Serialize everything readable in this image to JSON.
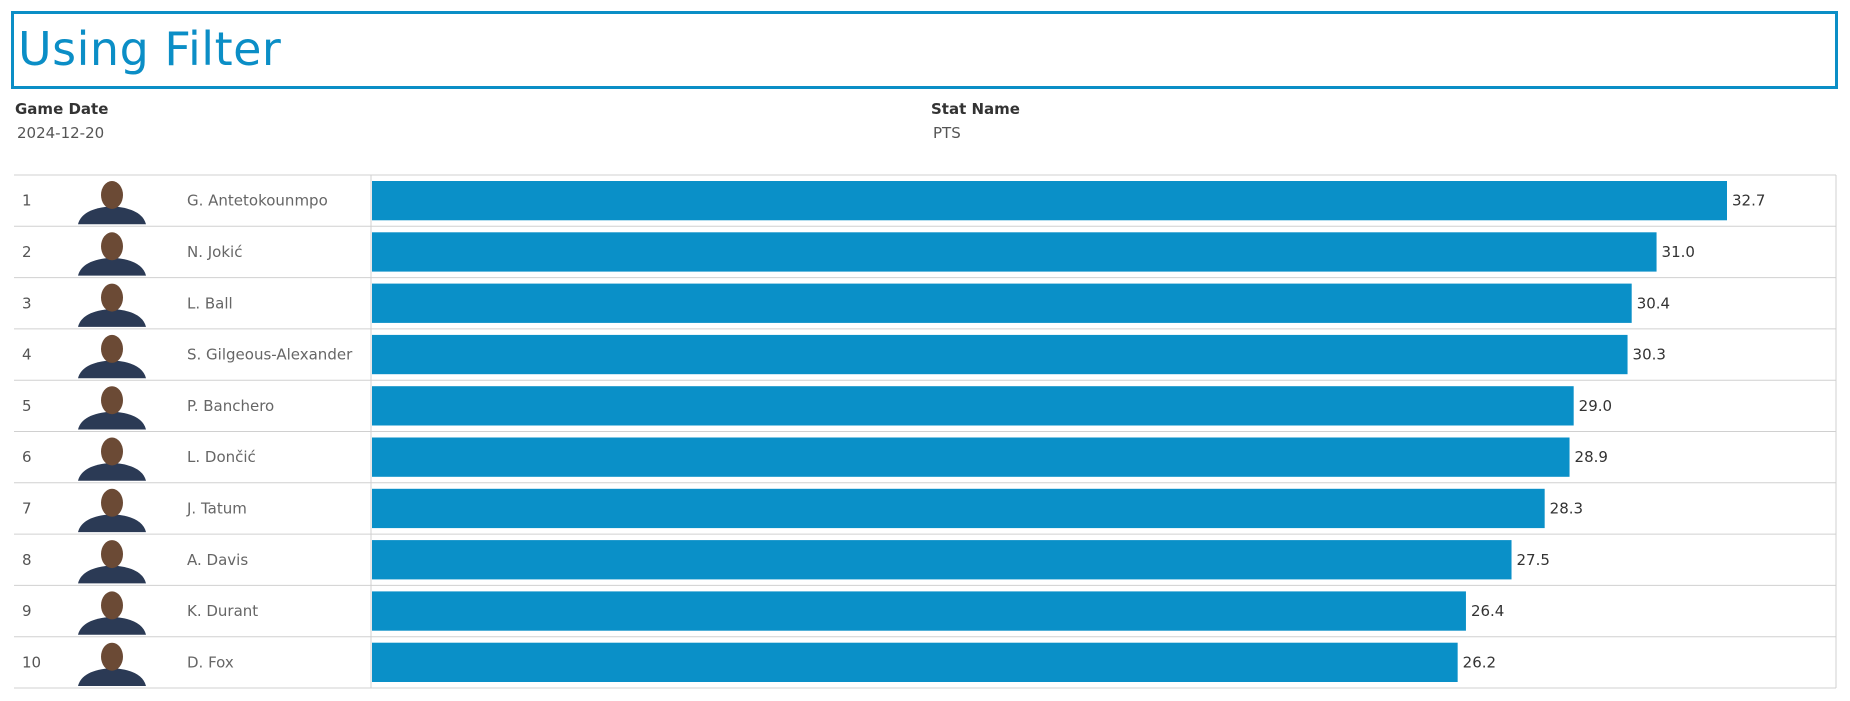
{
  "title": "Using Filter",
  "filters": {
    "game_date": {
      "label": "Game Date",
      "value": "2024-12-20"
    },
    "stat_name": {
      "label": "Stat Name",
      "value": "PTS"
    }
  },
  "colors": {
    "accent": "#0b8ec6",
    "bar": "#0a90c8",
    "grid": "#d0d0d0"
  },
  "chart_data": {
    "type": "bar",
    "orientation": "horizontal",
    "title": "",
    "xlabel": "",
    "ylabel": "",
    "xlim": [
      0,
      35
    ],
    "ranks": [
      "1",
      "2",
      "3",
      "4",
      "5",
      "6",
      "7",
      "8",
      "9",
      "10"
    ],
    "categories": [
      "G. Antetokounmpo",
      "N. Jokić",
      "L. Ball",
      "S. Gilgeous-Alexander",
      "P. Banchero",
      "L. Dončić",
      "J. Tatum",
      "A. Davis",
      "K. Durant",
      "D. Fox"
    ],
    "values": [
      32.7,
      31.0,
      30.4,
      30.3,
      29.0,
      28.9,
      28.3,
      27.5,
      26.4,
      26.2
    ],
    "value_labels": [
      "32.7",
      "31.0",
      "30.4",
      "30.3",
      "29.0",
      "28.9",
      "28.3",
      "27.5",
      "26.4",
      "26.2"
    ],
    "headshot_icons": [
      "player-headshot-icon",
      "player-headshot-icon",
      "player-headshot-icon",
      "player-headshot-icon",
      "player-headshot-icon",
      "player-headshot-icon",
      "player-headshot-icon",
      "player-headshot-icon",
      "player-headshot-icon",
      "player-headshot-icon"
    ]
  }
}
